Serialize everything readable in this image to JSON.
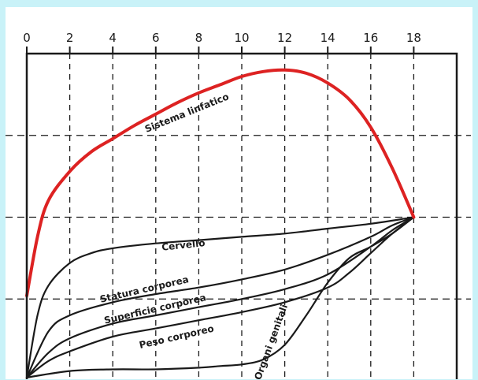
{
  "chart_data": {
    "type": "line",
    "title": "",
    "xlabel": "",
    "ylabel": "",
    "xlim": [
      0,
      20
    ],
    "ylim": [
      0,
      200
    ],
    "x_ticks": [
      0,
      2,
      4,
      6,
      8,
      10,
      12,
      14,
      16,
      18
    ],
    "y_gridlines": [
      50,
      100,
      150
    ],
    "grid": true,
    "series": [
      {
        "name": "Sistema linfatico",
        "color": "#dd2222",
        "x": [
          0,
          0.5,
          1,
          2,
          3,
          4,
          5,
          6,
          7,
          8,
          9,
          10,
          11,
          12,
          13,
          14,
          15,
          16,
          17,
          18
        ],
        "y": [
          52,
          88,
          110,
          128,
          140,
          148,
          156,
          163,
          170,
          176,
          181,
          186,
          189,
          190,
          188,
          182,
          172,
          155,
          130,
          100
        ]
      },
      {
        "name": "Cervello",
        "color": "#1a1a1a",
        "x": [
          0,
          0.5,
          1,
          2,
          3,
          4,
          6,
          8,
          10,
          12,
          14,
          16,
          18
        ],
        "y": [
          2,
          40,
          58,
          72,
          78,
          81,
          84,
          86,
          88,
          90,
          93,
          96,
          100
        ]
      },
      {
        "name": "Statura corporea",
        "color": "#1a1a1a",
        "x": [
          0,
          1,
          2,
          4,
          6,
          8,
          10,
          12,
          14,
          16,
          17,
          18
        ],
        "y": [
          2,
          30,
          40,
          48,
          53,
          57,
          62,
          68,
          77,
          88,
          95,
          100
        ]
      },
      {
        "name": "Superficie corporea",
        "color": "#1a1a1a",
        "x": [
          0,
          1,
          2,
          4,
          6,
          8,
          10,
          12,
          14,
          16,
          17,
          18
        ],
        "y": [
          2,
          17,
          26,
          35,
          40,
          45,
          50,
          56,
          65,
          82,
          92,
          100
        ]
      },
      {
        "name": "Peso corporeo",
        "color": "#1a1a1a",
        "x": [
          0,
          1,
          2,
          4,
          6,
          8,
          10,
          12,
          14,
          15,
          16,
          17,
          18
        ],
        "y": [
          2,
          12,
          18,
          27,
          32,
          37,
          42,
          48,
          57,
          66,
          78,
          90,
          100
        ]
      },
      {
        "name": "Organi genitali",
        "color": "#1a1a1a",
        "x": [
          0,
          2,
          4,
          6,
          8,
          9,
          10,
          11,
          12,
          13,
          14,
          15,
          16,
          17,
          18
        ],
        "y": [
          2,
          6,
          7,
          7,
          8,
          9,
          10,
          13,
          22,
          40,
          60,
          75,
          82,
          90,
          100
        ]
      }
    ],
    "annotations": [
      {
        "text": "Sistema linfatico",
        "x": 7.5,
        "y": 162,
        "angle": -22,
        "series": 0
      },
      {
        "text": "Cervello",
        "x": 7.3,
        "y": 81,
        "angle": -6,
        "series": 1
      },
      {
        "text": "Statura corporea",
        "x": 5.5,
        "y": 54,
        "angle": -13,
        "series": 2
      },
      {
        "text": "Superficie corporea",
        "x": 6.0,
        "y": 42,
        "angle": -13,
        "series": 3
      },
      {
        "text": "Peso corporeo",
        "x": 7.0,
        "y": 25,
        "angle": -13,
        "series": 4
      },
      {
        "text": "Organi genitali",
        "x": 11.5,
        "y": 23,
        "angle": -70,
        "series": 5
      }
    ]
  }
}
